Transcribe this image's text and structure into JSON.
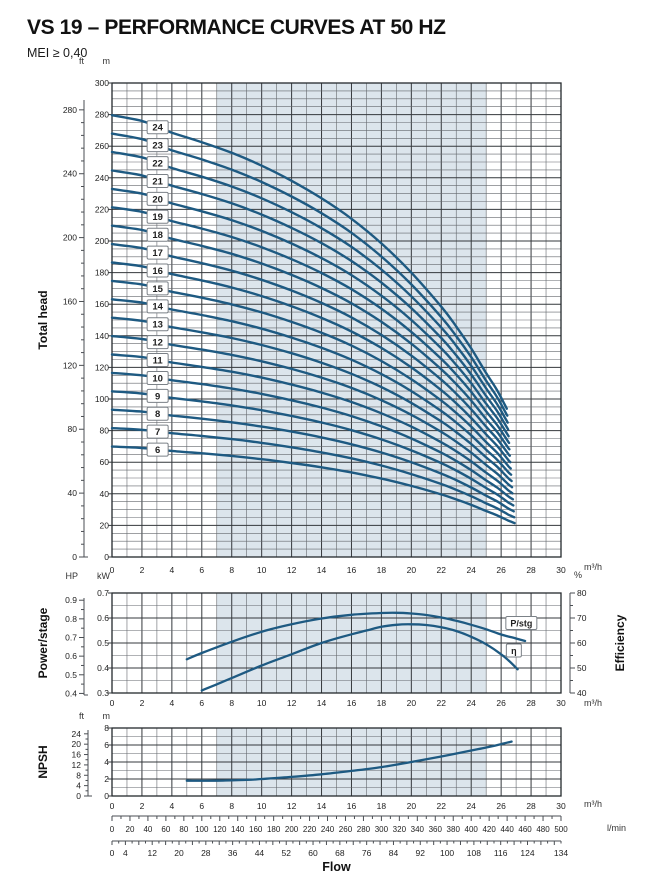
{
  "labels": {
    "title": "VS 19 – PERFORMANCE CURVES AT 50 HZ",
    "subtitle": "MEI ≥ 0,40",
    "total_head": "Total head",
    "power_stage": "Power/stage",
    "efficiency": "Efficiency",
    "npsh": "NPSH",
    "flow": "Flow",
    "ft": "ft",
    "m": "m",
    "hp": "HP",
    "kw": "kW",
    "pct": "%",
    "m3h": "m³/h",
    "lmin": "l/min"
  },
  "colors": {
    "curve": "#1e5a82",
    "band": "#dce5ec",
    "grid_minor": "#63676c",
    "grid_major": "#34383c",
    "frame": "#24282c",
    "text": "#222222",
    "box_border": "#7b8187"
  },
  "chart_data": [
    {
      "type": "line",
      "name": "total-head",
      "x_axis": {
        "unit": "m³/h",
        "min": 0,
        "max": 30,
        "label_step": 2,
        "grid_step": 1
      },
      "y_axis_m": {
        "unit": "m",
        "min": 0,
        "max": 300,
        "label_step": 20,
        "grid_step": 5
      },
      "y_axis_ft": {
        "unit": "ft",
        "min": 0,
        "max": 280,
        "label_step": 40,
        "minor_step": 8
      },
      "shaded_band_x": [
        7,
        25
      ],
      "stages": [
        6,
        7,
        8,
        9,
        10,
        11,
        12,
        13,
        14,
        15,
        16,
        17,
        18,
        19,
        20,
        21,
        22,
        23,
        24
      ],
      "per_stage_head_m": [
        [
          0,
          11.65
        ],
        [
          2,
          11.5
        ],
        [
          3,
          11.34
        ],
        [
          4,
          11.19
        ],
        [
          6,
          10.94
        ],
        [
          8,
          10.66
        ],
        [
          10,
          10.32
        ],
        [
          12,
          9.92
        ],
        [
          14,
          9.46
        ],
        [
          16,
          8.92
        ],
        [
          18,
          8.27
        ],
        [
          20,
          7.5
        ],
        [
          22,
          6.6
        ],
        [
          23,
          6.08
        ],
        [
          24,
          5.5
        ],
        [
          25,
          4.85
        ],
        [
          25.7,
          4.42
        ],
        [
          26.2,
          4.05
        ],
        [
          26.5,
          3.82
        ],
        [
          26.7,
          3.7
        ],
        [
          26.9,
          3.58
        ]
      ],
      "end_flow_stage6": 26.9,
      "end_flow_stage24": 26.38,
      "stage_label_flow": 3.05
    },
    {
      "type": "line",
      "name": "power-efficiency",
      "x_axis": {
        "unit": "m³/h",
        "min": 0,
        "max": 30,
        "label_step": 2,
        "grid_step": 1
      },
      "y_axis_kw": {
        "unit": "kW",
        "min": 0.3,
        "max": 0.7,
        "label_step": 0.1,
        "grid_step": 0.05
      },
      "y_axis_hp": {
        "unit": "HP",
        "labels": [
          0.4,
          0.5,
          0.6,
          0.7,
          0.8,
          0.9
        ],
        "minor_step": 0.05,
        "kw_per_hp": 0.7457
      },
      "y_axis_pct": {
        "unit": "%",
        "min": 40,
        "max": 80,
        "label_step": 10,
        "minor_step": 5
      },
      "shaded_band_x": [
        7,
        25
      ],
      "series": [
        {
          "name": "P/stg",
          "axis": "kw",
          "points": [
            [
              5,
              0.435
            ],
            [
              6,
              0.46
            ],
            [
              8,
              0.505
            ],
            [
              10,
              0.545
            ],
            [
              12,
              0.575
            ],
            [
              14,
              0.598
            ],
            [
              16,
              0.613
            ],
            [
              18,
              0.62
            ],
            [
              19,
              0.621
            ],
            [
              20,
              0.618
            ],
            [
              21,
              0.612
            ],
            [
              22,
              0.602
            ],
            [
              23,
              0.589
            ],
            [
              24,
              0.573
            ],
            [
              25,
              0.555
            ],
            [
              26,
              0.534
            ],
            [
              27,
              0.518
            ],
            [
              27.6,
              0.508
            ]
          ]
        },
        {
          "name": "η",
          "axis": "pct",
          "points": [
            [
              6,
              41
            ],
            [
              7,
              43.5
            ],
            [
              8,
              46
            ],
            [
              10,
              51
            ],
            [
              12,
              55.5
            ],
            [
              14,
              60
            ],
            [
              16,
              63.5
            ],
            [
              17,
              65
            ],
            [
              18,
              66.5
            ],
            [
              19,
              67.3
            ],
            [
              20,
              67.5
            ],
            [
              21,
              67.2
            ],
            [
              22,
              66.3
            ],
            [
              23,
              64.8
            ],
            [
              24,
              62.5
            ],
            [
              25,
              59.5
            ],
            [
              26,
              55.5
            ],
            [
              26.5,
              53
            ],
            [
              27.1,
              49.5
            ]
          ]
        }
      ],
      "curve_labels": [
        {
          "text": "P/stg",
          "flow": 27.35,
          "kw": 0.58
        },
        {
          "text": "η",
          "flow": 26.85,
          "pct": 57
        }
      ]
    },
    {
      "type": "line",
      "name": "npsh",
      "x_axis": {
        "unit": "m³/h",
        "min": 0,
        "max": 30,
        "label_step": 2,
        "grid_step": 1
      },
      "y_axis_m": {
        "unit": "m",
        "min": 0,
        "max": 8,
        "label_step": 2,
        "grid_step": 1
      },
      "y_axis_ft": {
        "unit": "ft",
        "labels": [
          0,
          4,
          8,
          12,
          16,
          20,
          24
        ],
        "minor_step": 2,
        "m_per_ft": 0.3048
      },
      "shaded_band_x": [
        7,
        25
      ],
      "series": [
        {
          "name": "NPSH",
          "axis": "m",
          "points": [
            [
              5,
              1.8
            ],
            [
              7,
              1.8
            ],
            [
              9,
              1.9
            ],
            [
              10,
              2.0
            ],
            [
              12,
              2.25
            ],
            [
              14,
              2.55
            ],
            [
              16,
              2.95
            ],
            [
              18,
              3.4
            ],
            [
              20,
              4.0
            ],
            [
              22,
              4.65
            ],
            [
              24,
              5.35
            ],
            [
              25,
              5.7
            ],
            [
              26,
              6.1
            ],
            [
              26.7,
              6.4
            ]
          ]
        }
      ]
    },
    {
      "type": "scale-rulers",
      "name": "flow-scales",
      "m3h_labels": [
        0,
        2,
        4,
        6,
        8,
        10,
        12,
        14,
        16,
        18,
        20,
        22,
        24,
        26,
        28,
        30
      ],
      "lmin": {
        "unit": "l/min",
        "max": 500,
        "label_step": 20,
        "minor_step": 10
      },
      "gpm": {
        "labels": [
          0,
          4,
          12,
          20,
          28,
          36,
          44,
          52,
          60,
          68,
          76,
          84,
          92,
          100,
          108,
          116,
          124,
          134
        ],
        "minor_step": 2,
        "max": 134
      },
      "axis_title": "Flow"
    }
  ]
}
